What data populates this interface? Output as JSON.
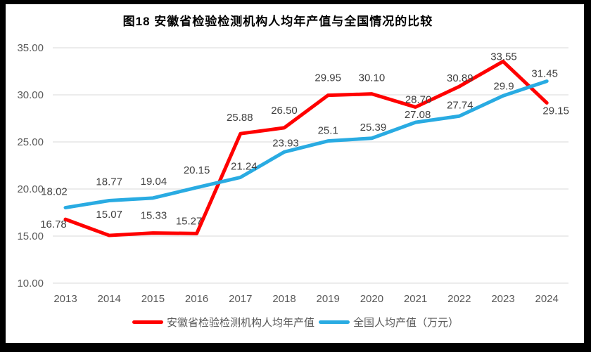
{
  "chart_data": {
    "type": "line",
    "title": "图18 安徽省检验检测机构人均年产值与全国情况的比较",
    "categories": [
      "2013",
      "2014",
      "2015",
      "2016",
      "2017",
      "2018",
      "2019",
      "2020",
      "2021",
      "2022",
      "2023",
      "2024"
    ],
    "xlabel": "",
    "ylabel": "",
    "ylim": [
      10,
      35
    ],
    "yticks": [
      {
        "value": 35,
        "label": "35.00"
      },
      {
        "value": 30,
        "label": "30.00"
      },
      {
        "value": 25,
        "label": "25.00"
      },
      {
        "value": 20,
        "label": "20.00"
      },
      {
        "value": 15,
        "label": "15.00"
      },
      {
        "value": 10,
        "label": "10.00"
      }
    ],
    "grid": true,
    "legend_position": "bottom",
    "colors": {
      "anhui_red": "#FF0000",
      "national_blue": "#29ABE2",
      "gridline": "#D9D9D9",
      "axis_text": "#595959",
      "data_label_text": "#404040"
    },
    "series": [
      {
        "name": "安徽省检验检测机构人均年产值",
        "color": "#FF0000",
        "values": [
          16.78,
          15.07,
          15.33,
          15.27,
          25.88,
          26.5,
          29.95,
          30.1,
          28.7,
          30.89,
          33.55,
          29.15
        ],
        "labels": [
          "16.78",
          "15.07",
          "15.33",
          "15.27",
          "25.88",
          "26.50",
          "29.95",
          "30.10",
          "28.70",
          "30.89",
          "33.55",
          "29.15"
        ],
        "label_offsets": [
          [
            -17,
            7
          ],
          [
            0,
            -30
          ],
          [
            1,
            -25
          ],
          [
            -11,
            -18
          ],
          [
            -1,
            -23
          ],
          [
            0,
            -25
          ],
          [
            0,
            -25
          ],
          [
            0,
            -23
          ],
          [
            4,
            -11
          ],
          [
            1,
            -12
          ],
          [
            1,
            -7
          ],
          [
            13,
            11
          ]
        ]
      },
      {
        "name": "全国人均产值（万元）",
        "color": "#29ABE2",
        "values": [
          18.02,
          18.77,
          19.04,
          20.15,
          21.24,
          23.93,
          25.1,
          25.39,
          27.08,
          27.74,
          29.9,
          31.45
        ],
        "labels": [
          "18.02",
          "18.77",
          "19.04",
          "20.15",
          "21.24",
          "23.93",
          "25.1",
          "25.39",
          "27.08",
          "27.74",
          "29.9",
          "31.45"
        ],
        "label_offsets": [
          [
            -16,
            -23
          ],
          [
            0,
            -27
          ],
          [
            1,
            -24
          ],
          [
            0,
            -25
          ],
          [
            5,
            -16
          ],
          [
            2,
            -13
          ],
          [
            0,
            -15
          ],
          [
            2,
            -16
          ],
          [
            3,
            -11
          ],
          [
            1,
            -16
          ],
          [
            1,
            -14
          ],
          [
            -3,
            -11
          ]
        ]
      }
    ]
  }
}
